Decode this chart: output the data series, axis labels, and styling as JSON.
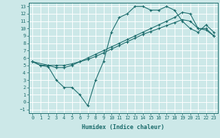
{
  "xlabel": "Humidex (Indice chaleur)",
  "bg_color": "#cce8e8",
  "grid_color": "#ffffff",
  "line_color": "#1a6b6b",
  "xlim": [
    -0.5,
    23.5
  ],
  "ylim": [
    -1.5,
    13.5
  ],
  "xticks": [
    0,
    1,
    2,
    3,
    4,
    5,
    6,
    7,
    8,
    9,
    10,
    11,
    12,
    13,
    14,
    15,
    16,
    17,
    18,
    19,
    20,
    21,
    22,
    23
  ],
  "yticks": [
    -1,
    0,
    1,
    2,
    3,
    4,
    5,
    6,
    7,
    8,
    9,
    10,
    11,
    12,
    13
  ],
  "line1_x": [
    0,
    1,
    2,
    3,
    4,
    5,
    6,
    7,
    8,
    9,
    10,
    11,
    12,
    13,
    14,
    15,
    16,
    17,
    18,
    19,
    20,
    21,
    22,
    23
  ],
  "line1_y": [
    5.5,
    5.0,
    5.0,
    5.0,
    5.0,
    5.2,
    5.5,
    5.8,
    6.2,
    6.7,
    7.2,
    7.7,
    8.2,
    8.7,
    9.2,
    9.6,
    10.0,
    10.4,
    10.8,
    11.2,
    11.0,
    10.0,
    9.8,
    9.0
  ],
  "line2_x": [
    0,
    2,
    3,
    4,
    5,
    6,
    7,
    8,
    9,
    10,
    11,
    12,
    13,
    14,
    15,
    16,
    17,
    18,
    19,
    20,
    21,
    22,
    23
  ],
  "line2_y": [
    5.5,
    5.0,
    4.7,
    4.7,
    5.0,
    5.5,
    6.0,
    6.5,
    7.0,
    7.5,
    8.0,
    8.5,
    9.0,
    9.5,
    10.0,
    10.5,
    11.0,
    11.5,
    12.2,
    12.0,
    10.0,
    10.0,
    9.0
  ],
  "line3_x": [
    0,
    1,
    2,
    3,
    4,
    5,
    6,
    7,
    8,
    9,
    10,
    11,
    12,
    13,
    14,
    15,
    16,
    17,
    18,
    19,
    20,
    21,
    22,
    23
  ],
  "line3_y": [
    5.5,
    5.0,
    4.8,
    3.0,
    2.0,
    2.0,
    1.0,
    -0.5,
    3.0,
    5.5,
    9.5,
    11.5,
    12.0,
    13.0,
    13.0,
    12.5,
    12.5,
    13.0,
    12.5,
    11.0,
    10.0,
    9.5,
    10.5,
    9.5
  ]
}
